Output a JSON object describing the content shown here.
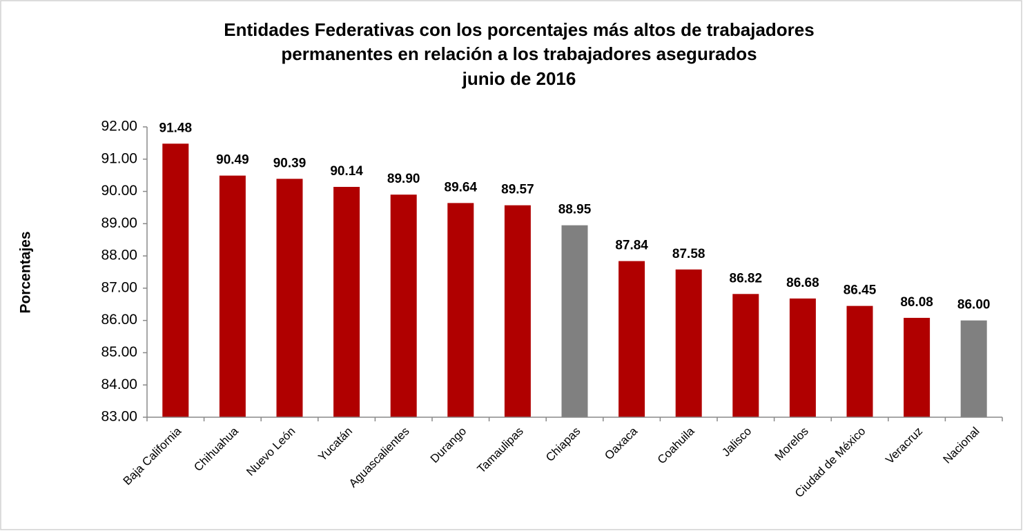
{
  "chart_data": {
    "type": "bar",
    "title": [
      "Entidades Federativas con los porcentajes más altos de trabajadores",
      "permanentes  en relación a los trabajadores asegurados",
      "junio de 2016"
    ],
    "ylabel": "Porcentajes",
    "categories": [
      "Baja California",
      "Chihuahua",
      "Nuevo León",
      "Yucatán",
      "Aguascalientes",
      "Durango",
      "Tamaulipas",
      "Chiapas",
      "Oaxaca",
      "Coahuila",
      "Jalisco",
      "Morelos",
      "Ciudad de México",
      "Veracruz",
      "Nacional"
    ],
    "values": [
      91.48,
      90.49,
      90.39,
      90.14,
      89.9,
      89.64,
      89.57,
      88.95,
      87.84,
      87.58,
      86.82,
      86.68,
      86.45,
      86.08,
      86.0
    ],
    "value_labels": [
      "91.48",
      "90.49",
      "90.39",
      "90.14",
      "89.90",
      "89.64",
      "89.57",
      "88.95",
      "87.84",
      "87.58",
      "86.82",
      "86.68",
      "86.45",
      "86.08",
      "86.00"
    ],
    "colors": [
      "#b00000",
      "#b00000",
      "#b00000",
      "#b00000",
      "#b00000",
      "#b00000",
      "#b00000",
      "#808080",
      "#b00000",
      "#b00000",
      "#b00000",
      "#b00000",
      "#b00000",
      "#b00000",
      "#808080"
    ],
    "ylim": [
      83,
      92
    ],
    "yticks": [
      {
        "value": 83,
        "label": "83.00"
      },
      {
        "value": 84,
        "label": "84.00"
      },
      {
        "value": 85,
        "label": "85.00"
      },
      {
        "value": 86,
        "label": "86.00"
      },
      {
        "value": 87,
        "label": "87.00"
      },
      {
        "value": 88,
        "label": "88.00"
      },
      {
        "value": 89,
        "label": "89.00"
      },
      {
        "value": 90,
        "label": "90.00"
      },
      {
        "value": 91,
        "label": "91.00"
      },
      {
        "value": 92,
        "label": "92.00"
      }
    ],
    "grid": false
  }
}
